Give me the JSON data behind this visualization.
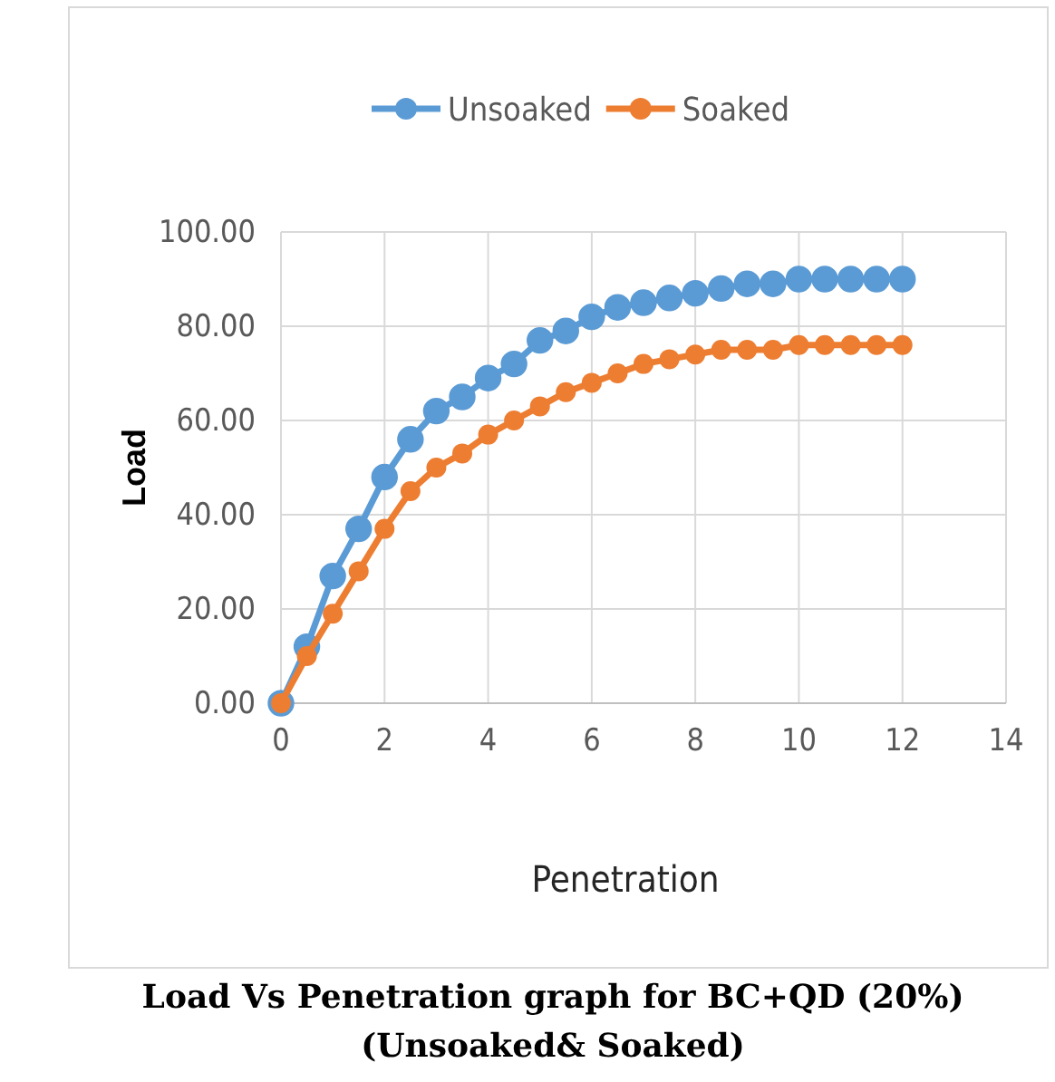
{
  "chart_data": {
    "type": "line",
    "title": "Load Vs Penetration graph for BC+QD (20%)\n(Unsoaked& Soaked)",
    "xlabel": "Penetration",
    "ylabel": "Load",
    "x": [
      0,
      0.5,
      1,
      1.5,
      2,
      2.5,
      3,
      3.5,
      4,
      4.5,
      5,
      5.5,
      6,
      6.5,
      7,
      7.5,
      8,
      8.5,
      9,
      9.5,
      10,
      10.5,
      11,
      11.5,
      12
    ],
    "series": [
      {
        "name": "Unsoaked",
        "color": "#5b9bd5",
        "values": [
          0,
          12,
          27,
          37,
          48,
          56,
          62,
          65,
          69,
          72,
          77,
          79,
          82,
          84,
          85,
          86,
          87,
          88,
          89,
          89,
          90,
          90,
          90,
          90,
          90
        ]
      },
      {
        "name": "Soaked",
        "color": "#ed7d31",
        "values": [
          0,
          10,
          19,
          28,
          37,
          45,
          50,
          53,
          57,
          60,
          63,
          66,
          68,
          70,
          72,
          73,
          74,
          75,
          75,
          75,
          76,
          76,
          76,
          76,
          76
        ]
      }
    ],
    "xlim": [
      0,
      14
    ],
    "xticks": [
      0,
      2,
      4,
      6,
      8,
      10,
      12,
      14
    ],
    "ylim": [
      0,
      100
    ],
    "yticks": [
      {
        "value": 0,
        "label": "0.00"
      },
      {
        "value": 20,
        "label": "20.00"
      },
      {
        "value": 40,
        "label": "40.00"
      },
      {
        "value": 60,
        "label": "60.00"
      },
      {
        "value": 80,
        "label": "80.00"
      },
      {
        "value": 100,
        "label": "100.00"
      }
    ],
    "grid": true,
    "legend": "top",
    "marker": "circle",
    "line_style": "solid"
  }
}
